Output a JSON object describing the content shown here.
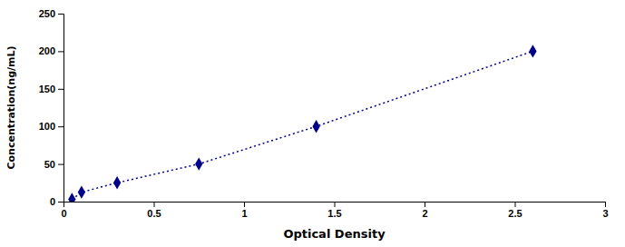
{
  "chart_data": {
    "type": "line",
    "x": [
      0.047,
      0.1,
      0.297,
      0.75,
      1.4,
      2.6
    ],
    "values": [
      3.0,
      12.5,
      25.0,
      50.0,
      100.0,
      200.0
    ],
    "color": "#00008B",
    "marker": "diamond",
    "line_style": "dotted",
    "xlabel": "Optical Density",
    "ylabel": "Concentration(ng/mL)",
    "xlim": [
      0,
      3
    ],
    "ylim": [
      0,
      250
    ],
    "xticks": [
      0,
      0.5,
      1,
      1.5,
      2,
      2.5,
      3
    ],
    "yticks": [
      0,
      50,
      100,
      150,
      200,
      250
    ],
    "grid": false
  }
}
